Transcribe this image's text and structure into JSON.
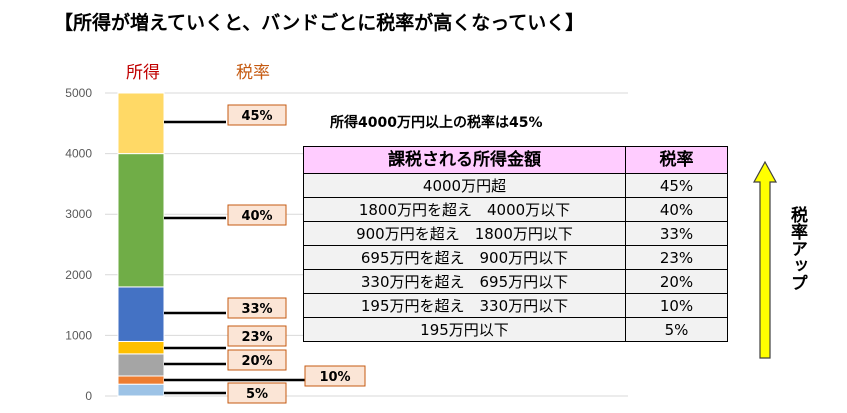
{
  "title": "【所得が増えていくと、バンドごとに税率が高くなっていく】",
  "headers": {
    "income": "所得",
    "rate": "税率"
  },
  "note": "所得4000万円以上の税率は45%",
  "table": {
    "columns": [
      "課税される所得金額",
      "税率"
    ],
    "rows": [
      [
        "4000万円超",
        "45%"
      ],
      [
        "1800万円を超え　4000万以下",
        "40%"
      ],
      [
        "900万円を超え　1800万円以下",
        "33%"
      ],
      [
        "695万円を超え　900万円以下",
        "23%"
      ],
      [
        "330万円を超え　695万円以下",
        "20%"
      ],
      [
        "195万円を超え　330万円以下",
        "10%"
      ],
      [
        "195万円以下",
        "5%"
      ]
    ]
  },
  "arrow_label": "税率アップ",
  "colors": {
    "arrow_fill": "#ffff00",
    "rate_box_fill": "#fbe5d6",
    "rate_box_border": "#c55a11"
  },
  "chart_data": {
    "type": "bar",
    "stacked": true,
    "ylim": [
      0,
      5000
    ],
    "yticks": [
      "0",
      "1000",
      "2000",
      "3000",
      "4000",
      "5000"
    ],
    "bands": [
      {
        "from": 0,
        "to": 195,
        "label": "5%",
        "color": "#9dc3e6"
      },
      {
        "from": 195,
        "to": 330,
        "label": "10%",
        "color": "#ed7d31"
      },
      {
        "from": 330,
        "to": 695,
        "label": "20%",
        "color": "#a5a5a5"
      },
      {
        "from": 695,
        "to": 900,
        "label": "23%",
        "color": "#ffc000"
      },
      {
        "from": 900,
        "to": 1800,
        "label": "33%",
        "color": "#4472c4"
      },
      {
        "from": 1800,
        "to": 4000,
        "label": "40%",
        "color": "#70ad47"
      },
      {
        "from": 4000,
        "to": 5000,
        "label": "45%",
        "color": "#ffd966"
      }
    ]
  }
}
